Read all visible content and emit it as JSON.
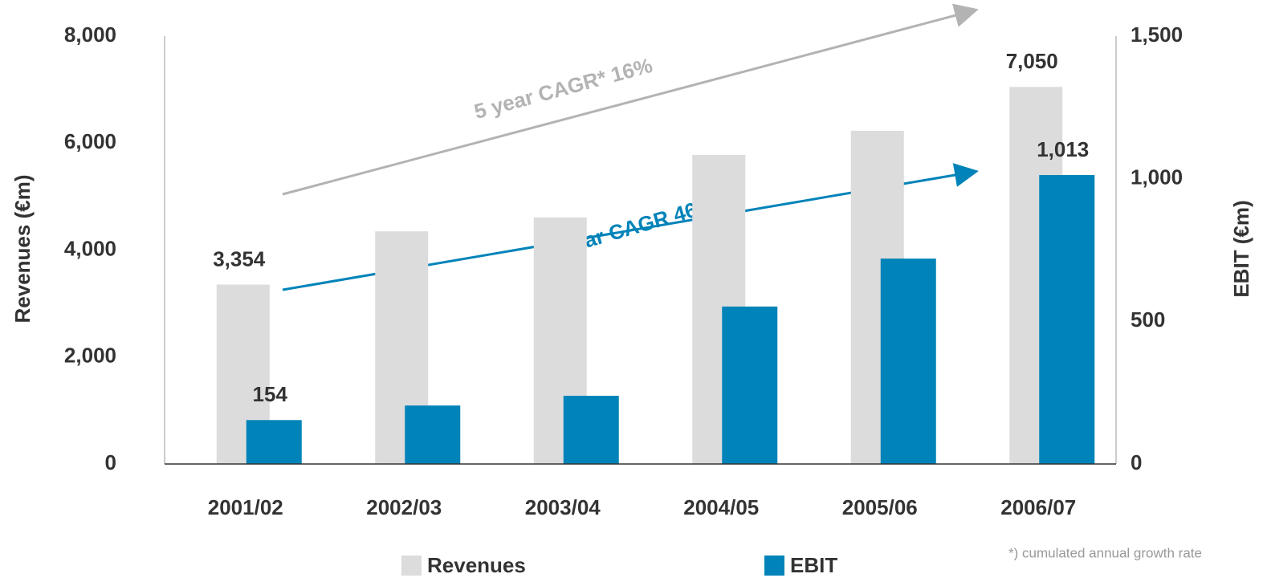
{
  "chart_data": {
    "type": "bar",
    "categories": [
      "2001/02",
      "2002/03",
      "2003/04",
      "2004/05",
      "2005/06",
      "2006/07"
    ],
    "series": [
      {
        "name": "Revenues",
        "color": "#dcdcdc",
        "values": [
          3354,
          4350,
          4610,
          5780,
          6230,
          7050
        ],
        "value_labels": [
          "3,354",
          null,
          null,
          null,
          null,
          "7,050"
        ]
      },
      {
        "name": "EBIT",
        "color": "#0083b9",
        "axis": "y2",
        "values": [
          154,
          205,
          239,
          552,
          720,
          1013
        ],
        "value_labels": [
          "154",
          null,
          null,
          null,
          null,
          "1,013"
        ]
      }
    ],
    "ylabel": "Revenues (€m)",
    "y2label": "EBIT (€m)",
    "ylim": [
      0,
      8000
    ],
    "yticks": [
      0,
      {
        "value": 2000,
        "label": "2,000"
      },
      {
        "value": 4000,
        "label": "4,000"
      },
      {
        "value": 6000,
        "label": "6,000"
      },
      {
        "value": 8000,
        "label": "8,000"
      }
    ],
    "y2lim": [
      0,
      1500
    ],
    "y2ticks": [
      0,
      500,
      {
        "value": 1000,
        "label": "1,000"
      },
      {
        "value": 1500,
        "label": "1,500"
      }
    ],
    "annotations": [
      "5 year CAGR* 16%",
      "5 year CAGR 46%",
      "*) cumulated annual growth rate"
    ],
    "legend": "bottom"
  }
}
